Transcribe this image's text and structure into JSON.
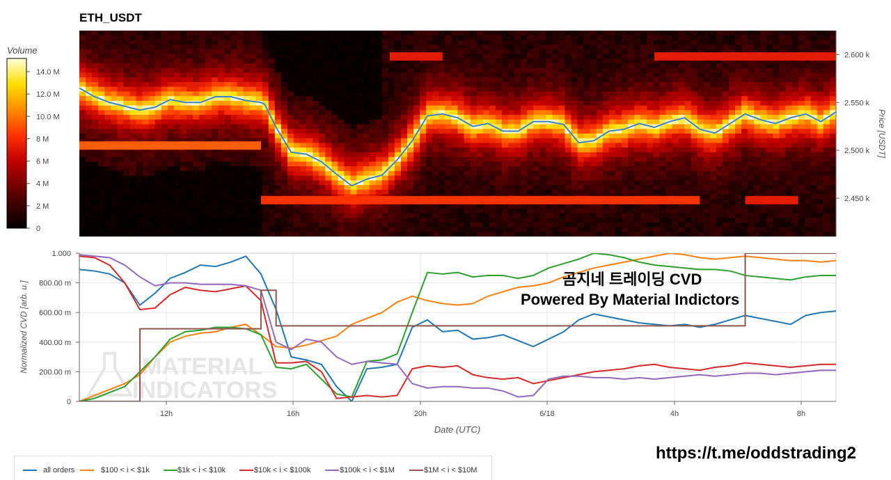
{
  "title": "ETH_USDT",
  "overlay": {
    "line1": "곰지네 트레이딩 CVD",
    "line2": "Powered By Material Indictors"
  },
  "url": "https://t.me/oddstrading2",
  "watermark": {
    "line1": "MATERIAL",
    "line2": "INDICATORS"
  },
  "colorbar": {
    "title": "Volume",
    "ticks": [
      "0",
      "2 M",
      "4 M",
      "6 M",
      "8 M",
      "10.0 M",
      "12.0 M",
      "14.0 M"
    ]
  },
  "legend": [
    {
      "label": "all orders",
      "color": "#1f77b4"
    },
    {
      "label": "$100 < i < $1k",
      "color": "#ff7f0e"
    },
    {
      "label": "$1k < i < $10k",
      "color": "#2ca02c"
    },
    {
      "label": "$10k < i < $100k",
      "color": "#d62728"
    },
    {
      "label": "$100k < i < $1M",
      "color": "#9467bd"
    },
    {
      "label": "$1M < i < $10M",
      "color": "#8c564b"
    }
  ],
  "chart_data": [
    {
      "type": "heatmap",
      "title": "ETH_USDT",
      "ylabel": "Price [USDT]",
      "yticks": [
        "2.450 k",
        "2.500 k",
        "2.550 k",
        "2.600 k"
      ],
      "ylim": [
        2410,
        2625
      ],
      "price_line": {
        "x": [
          0,
          0.02,
          0.04,
          0.06,
          0.08,
          0.1,
          0.12,
          0.14,
          0.16,
          0.18,
          0.2,
          0.22,
          0.24,
          0.245,
          0.26,
          0.28,
          0.3,
          0.32,
          0.34,
          0.36,
          0.38,
          0.4,
          0.42,
          0.44,
          0.46,
          0.48,
          0.5,
          0.52,
          0.54,
          0.56,
          0.58,
          0.6,
          0.62,
          0.64,
          0.66,
          0.68,
          0.7,
          0.72,
          0.74,
          0.76,
          0.78,
          0.8,
          0.82,
          0.84,
          0.86,
          0.88,
          0.9,
          0.92,
          0.94,
          0.96,
          0.98,
          1.0
        ],
        "y": [
          2565,
          2556,
          2550,
          2546,
          2542,
          2545,
          2553,
          2550,
          2550,
          2556,
          2556,
          2552,
          2550,
          2548,
          2524,
          2498,
          2496,
          2488,
          2475,
          2463,
          2470,
          2474,
          2490,
          2510,
          2536,
          2538,
          2534,
          2525,
          2528,
          2520,
          2520,
          2530,
          2530,
          2527,
          2508,
          2510,
          2520,
          2522,
          2528,
          2524,
          2530,
          2534,
          2522,
          2518,
          2528,
          2538,
          2532,
          2528,
          2534,
          2538,
          2530,
          2540
        ]
      },
      "bands": [
        {
          "price": 2505,
          "x0": 0.0,
          "x1": 0.24,
          "level": 8
        },
        {
          "price": 2448,
          "x0": 0.24,
          "x1": 0.82,
          "level": 7
        },
        {
          "price": 2448,
          "x0": 0.88,
          "x1": 0.95,
          "level": 6
        },
        {
          "price": 2598,
          "x0": 0.41,
          "x1": 0.48,
          "level": 6
        },
        {
          "price": 2598,
          "x0": 0.76,
          "x1": 1.0,
          "level": 6
        }
      ]
    },
    {
      "type": "line",
      "xlabel": "Date (UTC)",
      "ylabel": "Normalized CVD [arb. u.]",
      "x_ticks": [
        "12h",
        "16h",
        "20h",
        "6/18",
        "4h",
        "8h"
      ],
      "y_ticks": [
        "0",
        "200.00 m",
        "400.00 m",
        "600.00 m",
        "800.00 m",
        "1.000"
      ],
      "ylim": [
        0,
        1
      ],
      "x": [
        0,
        0.02,
        0.04,
        0.06,
        0.08,
        0.1,
        0.12,
        0.14,
        0.16,
        0.18,
        0.2,
        0.22,
        0.24,
        0.26,
        0.28,
        0.3,
        0.32,
        0.34,
        0.36,
        0.38,
        0.4,
        0.42,
        0.44,
        0.46,
        0.48,
        0.5,
        0.52,
        0.54,
        0.56,
        0.58,
        0.6,
        0.62,
        0.64,
        0.66,
        0.68,
        0.7,
        0.72,
        0.74,
        0.76,
        0.78,
        0.8,
        0.82,
        0.84,
        0.86,
        0.88,
        0.9,
        0.92,
        0.94,
        0.96,
        0.98,
        1.0
      ],
      "series": [
        {
          "name": "all orders",
          "values": [
            0.89,
            0.88,
            0.86,
            0.8,
            0.65,
            0.73,
            0.83,
            0.87,
            0.92,
            0.91,
            0.94,
            0.98,
            0.86,
            0.62,
            0.3,
            0.28,
            0.25,
            0.1,
            0.0,
            0.22,
            0.23,
            0.25,
            0.5,
            0.55,
            0.47,
            0.48,
            0.42,
            0.43,
            0.45,
            0.41,
            0.37,
            0.42,
            0.47,
            0.55,
            0.59,
            0.57,
            0.55,
            0.53,
            0.52,
            0.51,
            0.52,
            0.5,
            0.52,
            0.55,
            0.58,
            0.56,
            0.54,
            0.52,
            0.58,
            0.6,
            0.61
          ]
        },
        {
          "name": "$100 < i < $1k",
          "values": [
            0.0,
            0.04,
            0.08,
            0.12,
            0.18,
            0.3,
            0.4,
            0.44,
            0.46,
            0.47,
            0.5,
            0.52,
            0.45,
            0.37,
            0.36,
            0.38,
            0.41,
            0.44,
            0.52,
            0.56,
            0.6,
            0.67,
            0.71,
            0.68,
            0.66,
            0.65,
            0.66,
            0.71,
            0.74,
            0.77,
            0.78,
            0.8,
            0.84,
            0.87,
            0.9,
            0.92,
            0.94,
            0.96,
            0.98,
            1.0,
            0.99,
            0.97,
            0.96,
            0.97,
            0.98,
            0.97,
            0.96,
            0.95,
            0.95,
            0.94,
            0.95
          ]
        },
        {
          "name": "$1k < i < $10k",
          "values": [
            0.0,
            0.02,
            0.06,
            0.1,
            0.2,
            0.3,
            0.42,
            0.47,
            0.48,
            0.5,
            0.5,
            0.49,
            0.45,
            0.23,
            0.22,
            0.25,
            0.15,
            0.05,
            0.03,
            0.27,
            0.28,
            0.32,
            0.6,
            0.87,
            0.86,
            0.87,
            0.84,
            0.85,
            0.85,
            0.83,
            0.85,
            0.9,
            0.93,
            0.96,
            1.0,
            0.99,
            0.97,
            0.94,
            0.92,
            0.91,
            0.9,
            0.89,
            0.89,
            0.88,
            0.85,
            0.84,
            0.83,
            0.82,
            0.84,
            0.85,
            0.85
          ]
        },
        {
          "name": "$10k < i < $100k",
          "values": [
            0.98,
            0.97,
            0.92,
            0.8,
            0.62,
            0.63,
            0.72,
            0.77,
            0.75,
            0.74,
            0.76,
            0.78,
            0.68,
            0.26,
            0.26,
            0.27,
            0.2,
            0.02,
            0.03,
            0.04,
            0.03,
            0.04,
            0.22,
            0.24,
            0.23,
            0.24,
            0.18,
            0.16,
            0.15,
            0.16,
            0.12,
            0.14,
            0.16,
            0.18,
            0.2,
            0.21,
            0.22,
            0.24,
            0.25,
            0.23,
            0.22,
            0.21,
            0.23,
            0.24,
            0.26,
            0.25,
            0.24,
            0.23,
            0.24,
            0.25,
            0.25
          ]
        },
        {
          "name": "$100k < i < $1M",
          "values": [
            0.99,
            0.98,
            0.97,
            0.92,
            0.84,
            0.78,
            0.8,
            0.8,
            0.79,
            0.79,
            0.79,
            0.78,
            0.75,
            0.4,
            0.35,
            0.42,
            0.4,
            0.3,
            0.25,
            0.27,
            0.26,
            0.25,
            0.12,
            0.09,
            0.1,
            0.1,
            0.09,
            0.09,
            0.07,
            0.03,
            0.04,
            0.15,
            0.17,
            0.17,
            0.16,
            0.16,
            0.15,
            0.16,
            0.15,
            0.16,
            0.17,
            0.18,
            0.17,
            0.18,
            0.19,
            0.19,
            0.18,
            0.19,
            0.2,
            0.21,
            0.21
          ]
        },
        {
          "name": "$1M < i < $10M",
          "values": [
            0.0,
            0.0,
            0.0,
            0.0,
            0.49,
            0.49,
            0.49,
            0.49,
            0.49,
            0.49,
            0.49,
            0.49,
            0.75,
            0.51,
            0.51,
            0.51,
            0.51,
            0.51,
            0.51,
            0.51,
            0.51,
            0.51,
            0.51,
            0.51,
            0.51,
            0.51,
            0.51,
            0.51,
            0.51,
            0.51,
            0.51,
            0.51,
            0.51,
            0.51,
            0.51,
            0.51,
            0.51,
            0.51,
            0.51,
            0.51,
            0.51,
            0.51,
            0.51,
            0.51,
            1.0,
            1.0,
            1.0,
            1.0,
            1.0,
            1.0,
            1.0
          ]
        }
      ]
    }
  ]
}
